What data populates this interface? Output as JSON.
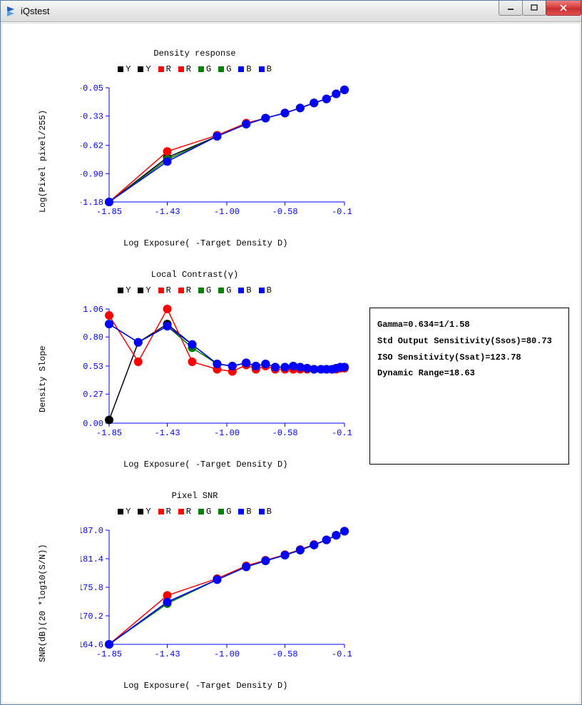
{
  "window": {
    "title": "iQstest"
  },
  "colors": {
    "Y_fill": "#000000",
    "R_fill": "#ff0000",
    "G_fill": "#008000",
    "B_fill": "#0000ff",
    "axis": "#0000ff",
    "tick_text": "#0000ff",
    "background": "#ffffff"
  },
  "legend_items": [
    {
      "label": "Y",
      "color": "#000000"
    },
    {
      "label": "Y",
      "color": "#000000"
    },
    {
      "label": "R",
      "color": "#ff0000"
    },
    {
      "label": "R",
      "color": "#ff0000"
    },
    {
      "label": "G",
      "color": "#008000"
    },
    {
      "label": "G",
      "color": "#008000"
    },
    {
      "label": "B",
      "color": "#0000ff"
    },
    {
      "label": "B",
      "color": "#0000ff"
    }
  ],
  "chart1": {
    "type": "line",
    "title": "Density response",
    "xlabel": "Log Exposure( -Target Density D)",
    "ylabel": "Log(Pixel pixel/255)",
    "xlim": [
      -1.85,
      -0.15
    ],
    "ylim": [
      -1.18,
      -0.05
    ],
    "xticks": [
      -1.85,
      -1.43,
      -1.0,
      -0.58,
      -0.15
    ],
    "yticks": [
      -1.18,
      -0.9,
      -0.62,
      -0.33,
      -0.05
    ],
    "x": [
      -1.85,
      -1.43,
      -1.07,
      -0.86,
      -0.72,
      -0.58,
      -0.47,
      -0.37,
      -0.28,
      -0.21,
      -0.15
    ],
    "series": {
      "Y": [
        -1.18,
        -0.74,
        -0.53,
        -0.41,
        -0.35,
        -0.3,
        -0.25,
        -0.2,
        -0.16,
        -0.11,
        -0.07
      ],
      "R": [
        -1.18,
        -0.68,
        -0.52,
        -0.4,
        -0.35,
        -0.3,
        -0.25,
        -0.2,
        -0.16,
        -0.11,
        -0.07
      ],
      "G": [
        -1.18,
        -0.76,
        -0.53,
        -0.41,
        -0.35,
        -0.3,
        -0.25,
        -0.2,
        -0.16,
        -0.11,
        -0.07
      ],
      "B": [
        -1.18,
        -0.78,
        -0.53,
        -0.41,
        -0.35,
        -0.3,
        -0.25,
        -0.2,
        -0.16,
        -0.11,
        -0.07
      ]
    },
    "marker_radius": 6,
    "line_width": 1.5
  },
  "chart2": {
    "type": "line",
    "title": "Local Contrast(γ)",
    "xlabel": "Log Exposure( -Target Density D)",
    "ylabel": "Density Slope",
    "xlim": [
      -1.85,
      -0.15
    ],
    "ylim": [
      0.0,
      1.06
    ],
    "xticks": [
      -1.85,
      -1.43,
      -1.0,
      -0.58,
      -0.15
    ],
    "yticks": [
      0.0,
      0.27,
      0.53,
      0.8,
      1.06
    ],
    "x": [
      -1.85,
      -1.64,
      -1.43,
      -1.25,
      -1.07,
      -0.96,
      -0.86,
      -0.79,
      -0.72,
      -0.65,
      -0.58,
      -0.52,
      -0.47,
      -0.42,
      -0.37,
      -0.32,
      -0.28,
      -0.24,
      -0.21,
      -0.18,
      -0.15
    ],
    "series": {
      "Y": [
        0.03,
        0.75,
        0.92,
        0.73,
        0.55,
        0.53,
        0.56,
        0.53,
        0.55,
        0.52,
        0.52,
        0.53,
        0.52,
        0.51,
        0.5,
        0.5,
        0.5,
        0.5,
        0.51,
        0.52,
        0.52
      ],
      "R": [
        1.0,
        0.57,
        1.06,
        0.57,
        0.5,
        0.48,
        0.54,
        0.5,
        0.53,
        0.5,
        0.5,
        0.5,
        0.5,
        0.5,
        0.5,
        0.5,
        0.5,
        0.5,
        0.5,
        0.51,
        0.51
      ],
      "G": [
        0.92,
        0.75,
        0.9,
        0.7,
        0.55,
        0.53,
        0.56,
        0.53,
        0.55,
        0.52,
        0.52,
        0.53,
        0.52,
        0.51,
        0.5,
        0.5,
        0.5,
        0.5,
        0.51,
        0.52,
        0.52
      ],
      "B": [
        0.92,
        0.75,
        0.9,
        0.73,
        0.55,
        0.53,
        0.56,
        0.53,
        0.55,
        0.52,
        0.52,
        0.53,
        0.52,
        0.51,
        0.5,
        0.5,
        0.5,
        0.5,
        0.51,
        0.52,
        0.52
      ]
    },
    "marker_radius": 6,
    "line_width": 1.5
  },
  "chart3": {
    "type": "line",
    "title": "Pixel SNR",
    "xlabel": "Log Exposure( -Target Density D)",
    "ylabel": "SNR(dB)(20 *log10(S/N))",
    "xlim": [
      -1.85,
      -0.15
    ],
    "ylim": [
      164.6,
      187.0
    ],
    "xticks": [
      -1.85,
      -1.43,
      -1.0,
      -0.58,
      -0.15
    ],
    "yticks": [
      164.6,
      170.2,
      175.8,
      181.4,
      187.0
    ],
    "x": [
      -1.85,
      -1.43,
      -1.07,
      -0.86,
      -0.72,
      -0.58,
      -0.47,
      -0.37,
      -0.28,
      -0.21,
      -0.15
    ],
    "series": {
      "Y": [
        164.6,
        172.9,
        177.3,
        179.8,
        181.0,
        182.1,
        183.1,
        184.1,
        185.1,
        186.0,
        186.8
      ],
      "R": [
        164.6,
        174.2,
        177.5,
        180.0,
        181.1,
        182.2,
        183.2,
        184.2,
        185.1,
        186.0,
        186.8
      ],
      "G": [
        164.6,
        172.6,
        177.3,
        179.8,
        181.0,
        182.1,
        183.1,
        184.1,
        185.1,
        186.0,
        186.8
      ],
      "B": [
        164.6,
        172.9,
        177.3,
        179.8,
        181.0,
        182.1,
        183.1,
        184.1,
        185.1,
        186.0,
        186.8
      ]
    },
    "marker_radius": 6,
    "line_width": 1.5
  },
  "info": {
    "lines": [
      "Gamma=0.634=1/1.58",
      "Std Output Sensitivity(Ssos)=80.73",
      "ISO Sensitivity(Ssat)=123.78",
      "Dynamic Range=18.63"
    ]
  }
}
